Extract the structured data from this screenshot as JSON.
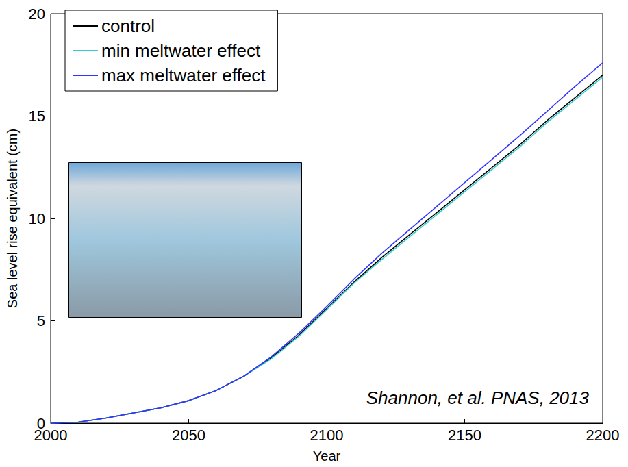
{
  "chart_data": {
    "type": "line",
    "x_label": "Year",
    "y_label": "Sea level rise equivalent (cm)",
    "annotation": "Shannon, et al. PNAS, 2013",
    "x": [
      2000,
      2010,
      2020,
      2030,
      2040,
      2050,
      2060,
      2070,
      2080,
      2090,
      2100,
      2110,
      2120,
      2130,
      2140,
      2150,
      2160,
      2170,
      2180,
      2190,
      2200
    ],
    "series": [
      {
        "name": "control",
        "color": "#000000",
        "values": [
          0,
          0.05,
          0.25,
          0.5,
          0.75,
          1.1,
          1.6,
          2.3,
          3.2,
          4.3,
          5.6,
          6.9,
          8.1,
          9.2,
          10.3,
          11.4,
          12.5,
          13.6,
          14.8,
          15.9,
          17.0
        ]
      },
      {
        "name": "min meltwater effect",
        "color": "#33cccc",
        "values": [
          0,
          0.05,
          0.25,
          0.5,
          0.75,
          1.1,
          1.6,
          2.3,
          3.15,
          4.25,
          5.55,
          6.85,
          8.0,
          9.1,
          10.2,
          11.3,
          12.4,
          13.5,
          14.7,
          15.8,
          16.9
        ]
      },
      {
        "name": "max meltwater effect",
        "color": "#3333ff",
        "values": [
          0,
          0.05,
          0.25,
          0.5,
          0.75,
          1.1,
          1.6,
          2.3,
          3.25,
          4.4,
          5.7,
          7.05,
          8.3,
          9.45,
          10.6,
          11.75,
          12.9,
          14.05,
          15.25,
          16.45,
          17.6
        ]
      }
    ],
    "xlim": [
      2000,
      2200
    ],
    "xticks": [
      2000,
      2050,
      2100,
      2150,
      2200
    ],
    "ylim": [
      0,
      20
    ],
    "yticks": [
      0,
      5,
      10,
      15,
      20
    ],
    "grid": false,
    "legend": "upper left"
  }
}
